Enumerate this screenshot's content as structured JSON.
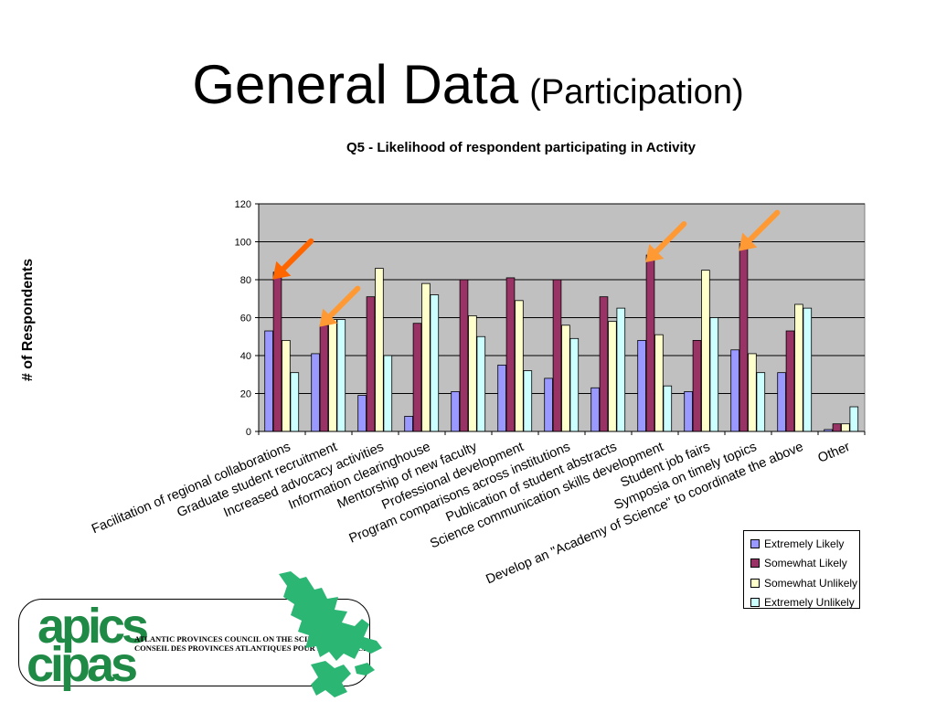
{
  "slide": {
    "title_main": "General Data",
    "title_sub": "(Participation)"
  },
  "logo": {
    "word_en": "apics",
    "word_fr": "cipas",
    "line_en": "ATLANTIC PROVINCES COUNCIL ON  THE SCIENCES",
    "line_fr": "CONSEIL DES PROVINCES  ATLANTIQUES POUR LES SCIENCES"
  },
  "chart_data": {
    "type": "bar",
    "title": "Q5 - Likelihood of respondent participating in Activity",
    "ylabel": "# of Respondents",
    "xlabel": "",
    "ylim": [
      0,
      120
    ],
    "yticks": [
      0,
      20,
      40,
      60,
      80,
      100,
      120
    ],
    "grid": true,
    "plot_background": "#c0c0c0",
    "legend_position": "bottom-right",
    "categories": [
      "Facilitation of regional collaborations",
      "Graduate student recruitment",
      "Increased advocacy activities",
      "Information clearinghouse",
      "Mentorship of new faculty",
      "Professional development",
      "Program comparisons across institutions",
      "Publication of student abstracts",
      "Science communication skills development",
      "Student job fairs",
      "Symposia on timely topics",
      "Develop an \"Academy of Science\" to coordinate the above",
      "Other"
    ],
    "series": [
      {
        "name": "Extremely Likely",
        "color": "#9999ff",
        "values": [
          53,
          41,
          19,
          8,
          21,
          35,
          28,
          23,
          48,
          21,
          43,
          31,
          1
        ]
      },
      {
        "name": "Somewhat Likely",
        "color": "#993366",
        "values": [
          84,
          56,
          71,
          57,
          80,
          81,
          80,
          71,
          93,
          48,
          99,
          53,
          4
        ]
      },
      {
        "name": "Somewhat Unlikely",
        "color": "#ffffcc",
        "values": [
          48,
          59,
          86,
          78,
          61,
          69,
          56,
          58,
          51,
          85,
          41,
          67,
          4
        ]
      },
      {
        "name": "Extremely Unlikely",
        "color": "#ccffff",
        "values": [
          31,
          59,
          40,
          72,
          50,
          32,
          49,
          65,
          24,
          60,
          31,
          65,
          13
        ]
      }
    ],
    "highlight_arrows": [
      {
        "category": "Facilitation of regional collaborations",
        "color": "#ff6600"
      },
      {
        "category": "Graduate student recruitment",
        "color": "#ff9933"
      },
      {
        "category": "Science communication skills development",
        "color": "#ff9933"
      },
      {
        "category": "Symposia on timely topics",
        "color": "#ff9933"
      }
    ]
  }
}
